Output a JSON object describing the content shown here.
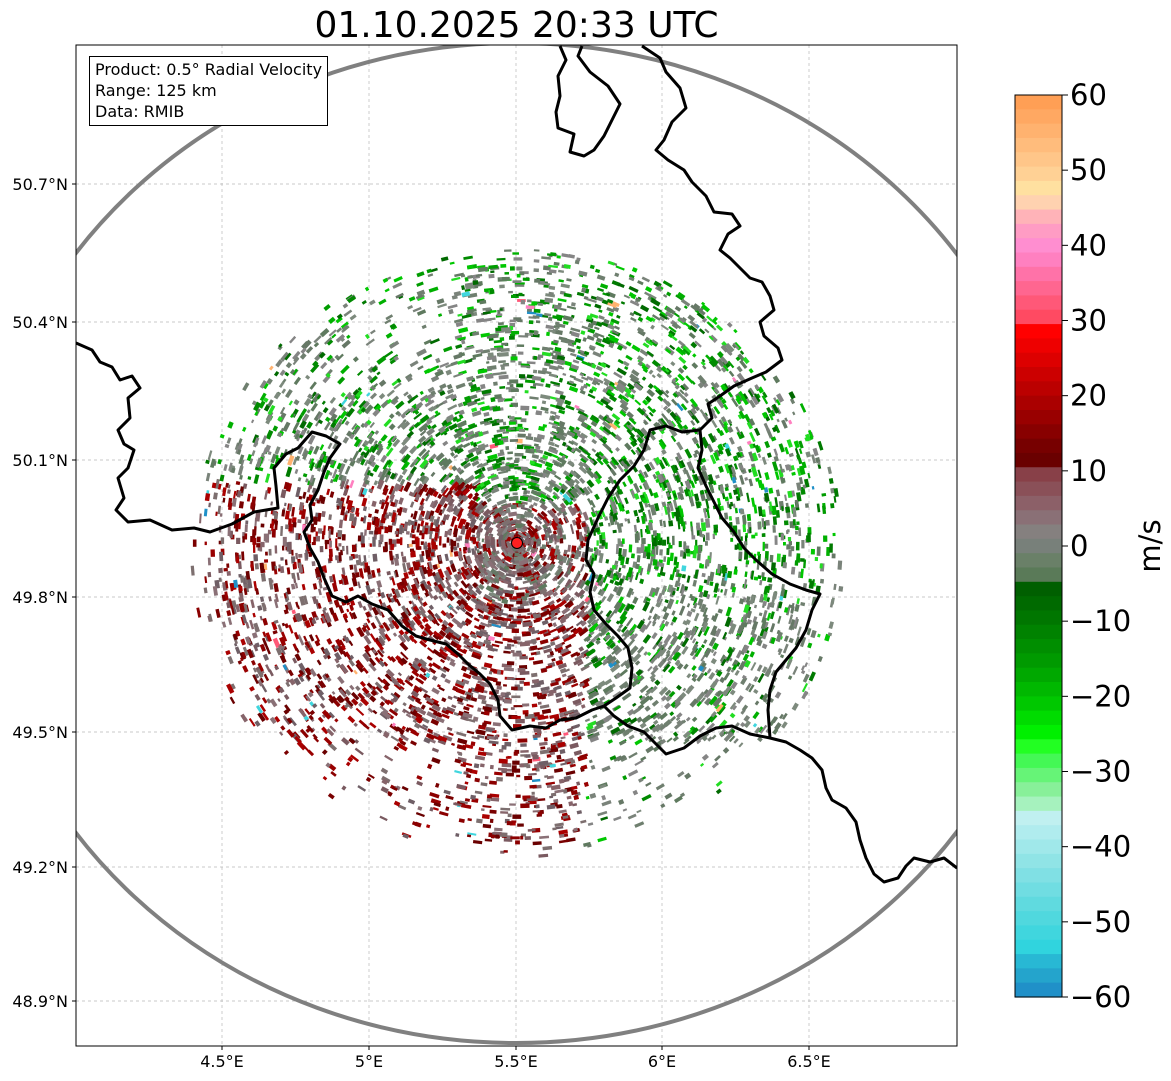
{
  "title": "01.10.2025 20:33 UTC",
  "info": {
    "product": "Product: 0.5° Radial Velocity",
    "range": "Range: 125 km",
    "data": "Data: RMIB"
  },
  "axes": {
    "lon_ticks": [
      "4.5°E",
      "5°E",
      "5.5°E",
      "6°E",
      "6.5°E"
    ],
    "lat_ticks": [
      "50.7°N",
      "50.4°N",
      "50.1°N",
      "49.8°N",
      "49.5°N",
      "49.2°N",
      "48.9°N"
    ]
  },
  "radar_site": {
    "color": "#ff2020"
  },
  "range_ring_color": "#808080",
  "colorbar": {
    "label": "m/s",
    "ticks": [
      "60",
      "50",
      "40",
      "30",
      "20",
      "10",
      "0",
      "−10",
      "−20",
      "−30",
      "−40",
      "−50",
      "−60"
    ],
    "colors": [
      "#ff9f55",
      "#ffa862",
      "#ffb26f",
      "#ffbc7c",
      "#ffc689",
      "#ffd195",
      "#ffe0a0",
      "#ffd2b0",
      "#ffb3b8",
      "#ff9cc4",
      "#ff8ed0",
      "#ff80c0",
      "#ff72a8",
      "#ff6690",
      "#ff5878",
      "#ff4a62",
      "#ff0000",
      "#ee0000",
      "#dd0000",
      "#cc0000",
      "#bb0000",
      "#aa0000",
      "#990000",
      "#880000",
      "#770000",
      "#6a0000",
      "#884048",
      "#8a5058",
      "#8c6068",
      "#8a7076",
      "#85807f",
      "#78807a",
      "#6a8068",
      "#5a7a58",
      "#005f00",
      "#006a00",
      "#007600",
      "#008200",
      "#008e00",
      "#009a00",
      "#00a800",
      "#00b800",
      "#00c800",
      "#00dc00",
      "#00f000",
      "#22ff22",
      "#44f855",
      "#66f477",
      "#88f099",
      "#a6f2be",
      "#c0f0f0",
      "#b0ecee",
      "#a0e8ea",
      "#90e4e6",
      "#80e0e4",
      "#70dde2",
      "#60dadf",
      "#50d8de",
      "#40d6de",
      "#30d4de",
      "#28b8d4",
      "#24a4cc",
      "#2090c8"
    ]
  }
}
